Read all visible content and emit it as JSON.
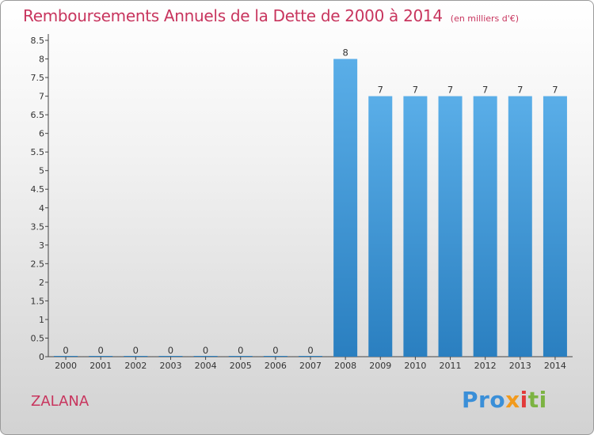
{
  "header": {
    "title": "Remboursements Annuels de la Dette de 2000 à 2014",
    "unit": "(en milliers d'€)"
  },
  "footer": {
    "town": "ZALANA",
    "logo": [
      "Pro",
      "x",
      "i",
      "ti"
    ]
  },
  "colors": {
    "accent": "#c8355e",
    "bar_top": "#5aaee8",
    "bar_bottom": "#2a7fc0"
  },
  "chart_data": {
    "type": "bar",
    "title": "Remboursements Annuels de la Dette de 2000 à 2014",
    "subtitle": "(en milliers d'€)",
    "categories": [
      "2000",
      "2001",
      "2002",
      "2003",
      "2004",
      "2005",
      "2006",
      "2007",
      "2008",
      "2009",
      "2010",
      "2011",
      "2012",
      "2013",
      "2014"
    ],
    "values": [
      0,
      0,
      0,
      0,
      0,
      0,
      0,
      0,
      8,
      7,
      7,
      7,
      7,
      7,
      7
    ],
    "ylim": [
      0,
      8.5
    ],
    "yticks": [
      "0",
      "0.5",
      "1",
      "1.5",
      "2",
      "2.5",
      "3",
      "3.5",
      "4",
      "4.5",
      "5",
      "5.5",
      "6",
      "6.5",
      "7",
      "7.5",
      "8",
      "8.5"
    ],
    "grid": false,
    "legend": "none"
  }
}
